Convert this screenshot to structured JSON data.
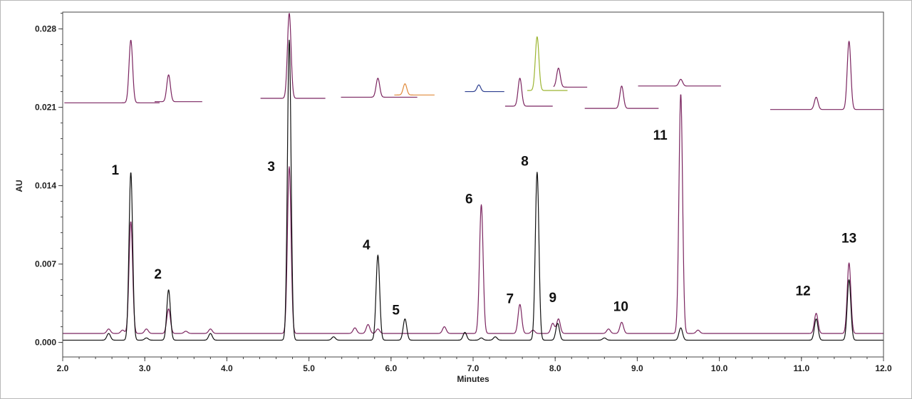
{
  "chart_data": {
    "type": "line",
    "title": "",
    "xlabel": "Minutes",
    "ylabel": "AU",
    "xlim": [
      2.0,
      12.0
    ],
    "ylim": [
      -0.0013,
      0.0295
    ],
    "x_ticks": [
      "2.0",
      "3.0",
      "4.0",
      "5.0",
      "6.0",
      "7.0",
      "8.0",
      "9.0",
      "10.0",
      "11.0",
      "12.0"
    ],
    "y_ticks": [
      "0.000",
      "0.007",
      "0.014",
      "0.021",
      "0.028"
    ],
    "grid": false,
    "colors": {
      "black": "#111111",
      "purple": "#7b2560",
      "orange": "#e08a3a",
      "green": "#9cb531",
      "blue": "#2c3e8f"
    },
    "series": [
      {
        "color": "#111111",
        "baseline": 0.0002,
        "peaks": [
          {
            "x": 2.56,
            "h": 0.0006
          },
          {
            "x": 2.83,
            "h": 0.015
          },
          {
            "x": 3.02,
            "h": 0.0002
          },
          {
            "x": 3.29,
            "h": 0.0045
          },
          {
            "x": 3.8,
            "h": 0.0006
          },
          {
            "x": 4.76,
            "h": 0.0268
          },
          {
            "x": 5.3,
            "h": 0.0003
          },
          {
            "x": 5.84,
            "h": 0.0076
          },
          {
            "x": 6.17,
            "h": 0.0019
          },
          {
            "x": 6.9,
            "h": 0.0007
          },
          {
            "x": 7.1,
            "h": 0.0002
          },
          {
            "x": 7.27,
            "h": 0.0003
          },
          {
            "x": 7.78,
            "h": 0.015
          },
          {
            "x": 8.03,
            "h": 0.0015
          },
          {
            "x": 8.6,
            "h": 0.0002
          },
          {
            "x": 9.53,
            "h": 0.0011
          },
          {
            "x": 11.18,
            "h": 0.0019
          },
          {
            "x": 11.58,
            "h": 0.0054
          }
        ]
      },
      {
        "color": "#7b2560",
        "baseline": 0.0008,
        "peaks": [
          {
            "x": 2.56,
            "h": 0.0004
          },
          {
            "x": 2.73,
            "h": 0.0003
          },
          {
            "x": 2.83,
            "h": 0.01
          },
          {
            "x": 3.02,
            "h": 0.0004
          },
          {
            "x": 3.29,
            "h": 0.0022
          },
          {
            "x": 3.5,
            "h": 0.0002
          },
          {
            "x": 3.8,
            "h": 0.0004
          },
          {
            "x": 4.76,
            "h": 0.0149
          },
          {
            "x": 5.56,
            "h": 0.0005
          },
          {
            "x": 5.72,
            "h": 0.0008
          },
          {
            "x": 5.84,
            "h": 0.0004
          },
          {
            "x": 6.65,
            "h": 0.0006
          },
          {
            "x": 7.1,
            "h": 0.0115
          },
          {
            "x": 7.57,
            "h": 0.0026
          },
          {
            "x": 7.73,
            "h": 0.0003
          },
          {
            "x": 7.97,
            "h": 0.0009
          },
          {
            "x": 8.04,
            "h": 0.0013
          },
          {
            "x": 8.65,
            "h": 0.0004
          },
          {
            "x": 8.81,
            "h": 0.001
          },
          {
            "x": 9.53,
            "h": 0.0214
          },
          {
            "x": 9.74,
            "h": 0.0003
          },
          {
            "x": 11.18,
            "h": 0.0018
          },
          {
            "x": 11.58,
            "h": 0.0063
          }
        ]
      }
    ],
    "peak_labels": [
      {
        "text": "1",
        "x": 2.64,
        "y": 0.015
      },
      {
        "text": "2",
        "x": 3.16,
        "y": 0.0057
      },
      {
        "text": "3",
        "x": 4.54,
        "y": 0.0153
      },
      {
        "text": "4",
        "x": 5.7,
        "y": 0.0083
      },
      {
        "text": "5",
        "x": 6.06,
        "y": 0.0025
      },
      {
        "text": "6",
        "x": 6.95,
        "y": 0.0124
      },
      {
        "text": "7",
        "x": 7.45,
        "y": 0.0035
      },
      {
        "text": "8",
        "x": 7.63,
        "y": 0.0158
      },
      {
        "text": "9",
        "x": 7.97,
        "y": 0.0036
      },
      {
        "text": "10",
        "x": 8.8,
        "y": 0.0028
      },
      {
        "text": "11",
        "x": 9.28,
        "y": 0.0181
      },
      {
        "text": "12",
        "x": 11.02,
        "y": 0.0042
      },
      {
        "text": "13",
        "x": 11.58,
        "y": 0.0089
      }
    ],
    "insets": [
      {
        "color": "#7b2560",
        "x0": 2.02,
        "x1": 3.18,
        "baseline": 0.0214,
        "peaks": [
          {
            "x": 2.83,
            "h": 0.0056
          }
        ]
      },
      {
        "color": "#7b2560",
        "x0": 3.12,
        "x1": 3.7,
        "baseline": 0.0215,
        "peaks": [
          {
            "x": 3.29,
            "h": 0.0024
          }
        ]
      },
      {
        "color": "#7b2560",
        "x0": 4.41,
        "x1": 5.2,
        "baseline": 0.0218,
        "peaks": [
          {
            "x": 4.76,
            "h": 0.0076
          }
        ]
      },
      {
        "color": "#7b2560",
        "x0": 5.39,
        "x1": 6.32,
        "baseline": 0.0219,
        "peaks": [
          {
            "x": 5.84,
            "h": 0.0017
          }
        ]
      },
      {
        "color": "#e08a3a",
        "x0": 6.04,
        "x1": 6.53,
        "baseline": 0.0221,
        "peaks": [
          {
            "x": 6.17,
            "h": 0.001
          }
        ]
      },
      {
        "color": "#2c3e8f",
        "x0": 6.9,
        "x1": 7.38,
        "baseline": 0.0224,
        "peaks": [
          {
            "x": 7.07,
            "h": 0.0006
          }
        ]
      },
      {
        "color": "#7b2560",
        "x0": 7.39,
        "x1": 7.97,
        "baseline": 0.0211,
        "peaks": [
          {
            "x": 7.57,
            "h": 0.0025
          }
        ]
      },
      {
        "color": "#9cb531",
        "x0": 7.66,
        "x1": 8.15,
        "baseline": 0.0225,
        "peaks": [
          {
            "x": 7.78,
            "h": 0.0048
          }
        ]
      },
      {
        "color": "#7b2560",
        "x0": 7.98,
        "x1": 8.39,
        "baseline": 0.0228,
        "peaks": [
          {
            "x": 8.04,
            "h": 0.0017
          }
        ]
      },
      {
        "color": "#7b2560",
        "x0": 8.36,
        "x1": 9.26,
        "baseline": 0.0209,
        "peaks": [
          {
            "x": 8.81,
            "h": 0.002
          }
        ]
      },
      {
        "color": "#7b2560",
        "x0": 9.01,
        "x1": 10.02,
        "baseline": 0.0229,
        "peaks": [
          {
            "x": 9.53,
            "h": 0.0006
          }
        ]
      },
      {
        "color": "#7b2560",
        "x0": 10.62,
        "x1": 12.0,
        "baseline": 0.0208,
        "peaks": [
          {
            "x": 11.18,
            "h": 0.0011
          },
          {
            "x": 11.58,
            "h": 0.0061
          }
        ]
      }
    ]
  }
}
